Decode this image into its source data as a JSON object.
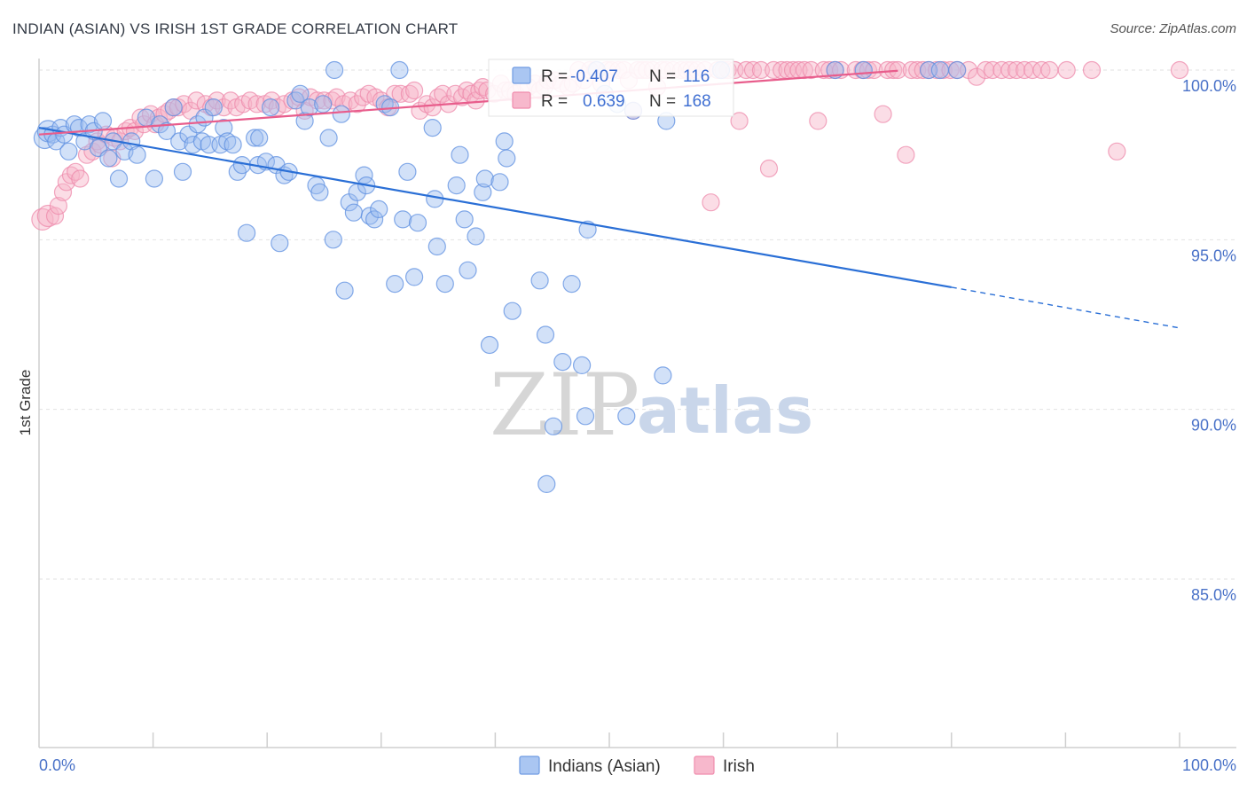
{
  "title": "INDIAN (ASIAN) VS IRISH 1ST GRADE CORRELATION CHART",
  "source": "Source: ZipAtlas.com",
  "watermark": {
    "part1": "ZIP",
    "part2": "atlas"
  },
  "colors": {
    "blue": "#6f9be3",
    "pink": "#f08cad",
    "blue_line": "#2a6fd6",
    "pink_line": "#e85d8c"
  },
  "chart_data": {
    "type": "scatter",
    "title": "INDIAN (ASIAN) VS IRISH 1ST GRADE CORRELATION CHART",
    "xlabel": "",
    "ylabel": "1st Grade",
    "xlim": [
      0,
      100
    ],
    "ylim": [
      79.9,
      101.0
    ],
    "x_tick_labels": [
      "0.0%",
      "100.0%"
    ],
    "y_ticks": [
      100.0,
      95.0,
      90.0,
      85.0
    ],
    "y_tick_labels": [
      "100.0%",
      "95.0%",
      "90.0%",
      "85.0%"
    ],
    "legend": [
      {
        "name": "Indians (Asian)",
        "color": "blue"
      },
      {
        "name": "Irish",
        "color": "pink"
      }
    ],
    "stats": [
      {
        "r_label": "R =",
        "r": "-0.407",
        "n_label": "N =",
        "n": "116"
      },
      {
        "r_label": "R =",
        "r": "0.639",
        "n_label": "N =",
        "n": "168"
      }
    ],
    "series": [
      {
        "name": "Indians (Asian)",
        "color": "blue",
        "trend": {
          "x": [
            0,
            80
          ],
          "y": [
            98.3,
            93.6
          ],
          "dashed_to": [
            100,
            92.4
          ]
        },
        "points": [
          [
            0.5,
            98.0
          ],
          [
            0.8,
            98.2
          ],
          [
            1.2,
            98.1
          ],
          [
            1.5,
            97.9
          ],
          [
            1.9,
            98.3
          ],
          [
            2.2,
            98.1
          ],
          [
            2.6,
            97.6
          ],
          [
            3.1,
            98.4
          ],
          [
            3.5,
            98.3
          ],
          [
            4.0,
            97.9
          ],
          [
            4.4,
            98.4
          ],
          [
            4.8,
            98.2
          ],
          [
            5.2,
            97.7
          ],
          [
            5.6,
            98.5
          ],
          [
            6.1,
            97.4
          ],
          [
            6.5,
            97.9
          ],
          [
            7.0,
            96.8
          ],
          [
            7.5,
            97.6
          ],
          [
            8.1,
            97.9
          ],
          [
            8.6,
            97.5
          ],
          [
            9.4,
            98.6
          ],
          [
            10.1,
            96.8
          ],
          [
            10.6,
            98.4
          ],
          [
            11.2,
            98.2
          ],
          [
            11.8,
            98.9
          ],
          [
            12.3,
            97.9
          ],
          [
            12.6,
            97.0
          ],
          [
            13.1,
            98.1
          ],
          [
            13.5,
            97.8
          ],
          [
            13.9,
            98.4
          ],
          [
            14.3,
            97.9
          ],
          [
            14.9,
            97.8
          ],
          [
            14.5,
            98.6
          ],
          [
            15.3,
            98.9
          ],
          [
            15.9,
            97.8
          ],
          [
            16.2,
            98.3
          ],
          [
            16.5,
            97.9
          ],
          [
            17.0,
            97.8
          ],
          [
            17.4,
            97.0
          ],
          [
            17.8,
            97.2
          ],
          [
            18.2,
            95.2
          ],
          [
            18.9,
            98.0
          ],
          [
            19.3,
            98.0
          ],
          [
            19.2,
            97.2
          ],
          [
            19.9,
            97.3
          ],
          [
            20.3,
            98.9
          ],
          [
            20.8,
            97.2
          ],
          [
            21.1,
            94.9
          ],
          [
            21.5,
            96.9
          ],
          [
            21.9,
            97.0
          ],
          [
            22.5,
            99.1
          ],
          [
            22.9,
            99.3
          ],
          [
            23.3,
            98.5
          ],
          [
            23.7,
            98.9
          ],
          [
            24.3,
            96.6
          ],
          [
            24.6,
            96.4
          ],
          [
            24.9,
            99.0
          ],
          [
            25.4,
            98.0
          ],
          [
            25.8,
            95.0
          ],
          [
            25.9,
            100.0
          ],
          [
            26.5,
            98.7
          ],
          [
            26.8,
            93.5
          ],
          [
            27.2,
            96.1
          ],
          [
            27.6,
            95.8
          ],
          [
            27.9,
            96.4
          ],
          [
            28.5,
            96.9
          ],
          [
            28.7,
            96.6
          ],
          [
            29.0,
            95.7
          ],
          [
            29.4,
            95.6
          ],
          [
            29.8,
            95.9
          ],
          [
            30.3,
            99.0
          ],
          [
            30.8,
            98.9
          ],
          [
            31.2,
            93.7
          ],
          [
            31.6,
            100.0
          ],
          [
            31.9,
            95.6
          ],
          [
            32.3,
            97.0
          ],
          [
            32.9,
            93.9
          ],
          [
            33.2,
            95.5
          ],
          [
            34.5,
            98.3
          ],
          [
            34.7,
            96.2
          ],
          [
            34.9,
            94.8
          ],
          [
            35.6,
            93.7
          ],
          [
            36.6,
            96.6
          ],
          [
            36.9,
            97.5
          ],
          [
            37.3,
            95.6
          ],
          [
            37.6,
            94.1
          ],
          [
            38.3,
            95.1
          ],
          [
            38.9,
            96.4
          ],
          [
            39.1,
            96.8
          ],
          [
            39.5,
            91.9
          ],
          [
            40.4,
            96.7
          ],
          [
            40.8,
            97.9
          ],
          [
            41.0,
            97.4
          ],
          [
            41.5,
            92.9
          ],
          [
            43.9,
            93.8
          ],
          [
            44.4,
            92.2
          ],
          [
            44.5,
            87.8
          ],
          [
            45.9,
            91.4
          ],
          [
            45.1,
            89.5
          ],
          [
            46.7,
            93.7
          ],
          [
            47.6,
            91.3
          ],
          [
            47.9,
            89.8
          ],
          [
            48.1,
            95.3
          ],
          [
            48.9,
            100.0
          ],
          [
            49.6,
            99.3
          ],
          [
            50.7,
            99.0
          ],
          [
            51.5,
            89.8
          ],
          [
            52.1,
            98.8
          ],
          [
            54.7,
            91.0
          ],
          [
            55.0,
            98.5
          ],
          [
            59.8,
            100.0
          ],
          [
            69.8,
            100.0
          ],
          [
            72.3,
            100.0
          ],
          [
            78.0,
            100.0
          ],
          [
            79.0,
            100.0
          ],
          [
            80.5,
            100.0
          ]
        ]
      },
      {
        "name": "Irish",
        "color": "pink",
        "trend": {
          "x": [
            0,
            75.3
          ],
          "y": [
            98.1,
            99.98
          ]
        },
        "points": [
          [
            0.3,
            95.6
          ],
          [
            0.8,
            95.7
          ],
          [
            1.4,
            95.7
          ],
          [
            1.7,
            96.0
          ],
          [
            2.1,
            96.4
          ],
          [
            2.4,
            96.7
          ],
          [
            2.8,
            96.9
          ],
          [
            3.2,
            97.0
          ],
          [
            3.6,
            96.8
          ],
          [
            4.2,
            97.5
          ],
          [
            4.7,
            97.6
          ],
          [
            5.1,
            97.9
          ],
          [
            5.4,
            97.8
          ],
          [
            5.9,
            98.1
          ],
          [
            6.4,
            97.4
          ],
          [
            6.6,
            98.0
          ],
          [
            7.1,
            97.9
          ],
          [
            7.6,
            98.2
          ],
          [
            8.0,
            98.3
          ],
          [
            8.4,
            98.2
          ],
          [
            8.9,
            98.6
          ],
          [
            9.2,
            98.4
          ],
          [
            9.8,
            98.7
          ],
          [
            10.2,
            98.4
          ],
          [
            10.5,
            98.6
          ],
          [
            11.0,
            98.7
          ],
          [
            11.4,
            98.8
          ],
          [
            11.8,
            98.9
          ],
          [
            12.2,
            98.9
          ],
          [
            12.7,
            99.0
          ],
          [
            13.3,
            98.8
          ],
          [
            13.8,
            99.1
          ],
          [
            14.6,
            99.0
          ],
          [
            15.1,
            98.9
          ],
          [
            15.6,
            99.1
          ],
          [
            16.2,
            98.9
          ],
          [
            16.8,
            99.1
          ],
          [
            17.3,
            98.9
          ],
          [
            17.9,
            99.0
          ],
          [
            18.5,
            99.1
          ],
          [
            19.1,
            99.0
          ],
          [
            19.8,
            99.0
          ],
          [
            20.4,
            99.1
          ],
          [
            20.9,
            98.9
          ],
          [
            21.5,
            99.0
          ],
          [
            22.2,
            99.1
          ],
          [
            22.8,
            99.2
          ],
          [
            23.3,
            98.8
          ],
          [
            23.8,
            99.2
          ],
          [
            24.4,
            99.1
          ],
          [
            25.0,
            99.1
          ],
          [
            25.7,
            99.1
          ],
          [
            26.1,
            99.2
          ],
          [
            26.7,
            99.0
          ],
          [
            27.3,
            99.1
          ],
          [
            27.9,
            99.0
          ],
          [
            28.4,
            99.2
          ],
          [
            28.9,
            99.3
          ],
          [
            29.5,
            99.2
          ],
          [
            30.0,
            99.1
          ],
          [
            30.6,
            98.9
          ],
          [
            31.2,
            99.3
          ],
          [
            31.7,
            99.3
          ],
          [
            32.5,
            99.3
          ],
          [
            32.9,
            99.4
          ],
          [
            33.4,
            98.8
          ],
          [
            34.0,
            99.0
          ],
          [
            34.5,
            98.9
          ],
          [
            35.0,
            99.2
          ],
          [
            35.4,
            99.3
          ],
          [
            35.9,
            99.0
          ],
          [
            36.5,
            99.3
          ],
          [
            37.1,
            99.2
          ],
          [
            37.5,
            99.4
          ],
          [
            37.9,
            99.3
          ],
          [
            38.3,
            99.1
          ],
          [
            38.6,
            99.4
          ],
          [
            38.9,
            99.5
          ],
          [
            39.3,
            99.4
          ],
          [
            39.9,
            99.3
          ],
          [
            40.5,
            99.6
          ],
          [
            40.9,
            99.4
          ],
          [
            41.3,
            99.4
          ],
          [
            41.8,
            99.3
          ],
          [
            42.3,
            99.5
          ],
          [
            42.9,
            99.5
          ],
          [
            43.5,
            99.6
          ],
          [
            43.9,
            99.4
          ],
          [
            44.3,
            99.5
          ],
          [
            44.6,
            99.7
          ],
          [
            45.2,
            99.7
          ],
          [
            45.8,
            99.6
          ],
          [
            46.4,
            99.5
          ],
          [
            46.8,
            99.6
          ],
          [
            47.3,
            100.0
          ],
          [
            47.8,
            99.7
          ],
          [
            48.3,
            100.0
          ],
          [
            48.8,
            100.0
          ],
          [
            49.3,
            99.6
          ],
          [
            49.8,
            100.0
          ],
          [
            50.2,
            100.0
          ],
          [
            50.8,
            100.0
          ],
          [
            51.3,
            100.0
          ],
          [
            51.7,
            99.7
          ],
          [
            52.1,
            98.8
          ],
          [
            52.5,
            100.0
          ],
          [
            52.9,
            100.0
          ],
          [
            53.3,
            100.0
          ],
          [
            53.8,
            100.0
          ],
          [
            54.2,
            99.5
          ],
          [
            54.6,
            100.0
          ],
          [
            55.0,
            100.0
          ],
          [
            55.6,
            100.0
          ],
          [
            56.3,
            100.0
          ],
          [
            56.8,
            100.0
          ],
          [
            57.2,
            100.0
          ],
          [
            57.7,
            100.0
          ],
          [
            58.4,
            100.0
          ],
          [
            58.9,
            96.1
          ],
          [
            59.5,
            100.0
          ],
          [
            60.0,
            100.0
          ],
          [
            60.4,
            100.0
          ],
          [
            61.0,
            100.0
          ],
          [
            61.4,
            98.5
          ],
          [
            62.0,
            100.0
          ],
          [
            62.6,
            100.0
          ],
          [
            63.3,
            100.0
          ],
          [
            64.0,
            97.1
          ],
          [
            64.4,
            100.0
          ],
          [
            65.1,
            100.0
          ],
          [
            65.6,
            100.0
          ],
          [
            66.1,
            100.0
          ],
          [
            66.6,
            100.0
          ],
          [
            67.1,
            100.0
          ],
          [
            67.7,
            100.0
          ],
          [
            68.3,
            98.5
          ],
          [
            68.8,
            100.0
          ],
          [
            69.3,
            100.0
          ],
          [
            69.8,
            100.0
          ],
          [
            70.3,
            100.0
          ],
          [
            71.6,
            100.0
          ],
          [
            72.2,
            100.0
          ],
          [
            72.7,
            100.0
          ],
          [
            73.2,
            100.0
          ],
          [
            74.0,
            98.7
          ],
          [
            74.4,
            100.0
          ],
          [
            74.9,
            100.0
          ],
          [
            75.3,
            100.0
          ],
          [
            76.0,
            97.5
          ],
          [
            76.5,
            100.0
          ],
          [
            77.0,
            100.0
          ],
          [
            77.5,
            100.0
          ],
          [
            78.0,
            100.0
          ],
          [
            78.7,
            100.0
          ],
          [
            79.3,
            100.0
          ],
          [
            79.9,
            100.0
          ],
          [
            80.5,
            100.0
          ],
          [
            81.5,
            100.0
          ],
          [
            82.2,
            99.8
          ],
          [
            83.0,
            100.0
          ],
          [
            83.6,
            100.0
          ],
          [
            84.4,
            100.0
          ],
          [
            85.1,
            100.0
          ],
          [
            85.7,
            100.0
          ],
          [
            86.4,
            100.0
          ],
          [
            87.1,
            100.0
          ],
          [
            87.9,
            100.0
          ],
          [
            88.6,
            100.0
          ],
          [
            90.1,
            100.0
          ],
          [
            92.3,
            100.0
          ],
          [
            94.5,
            97.6
          ],
          [
            100.0,
            100.0
          ]
        ]
      }
    ]
  }
}
